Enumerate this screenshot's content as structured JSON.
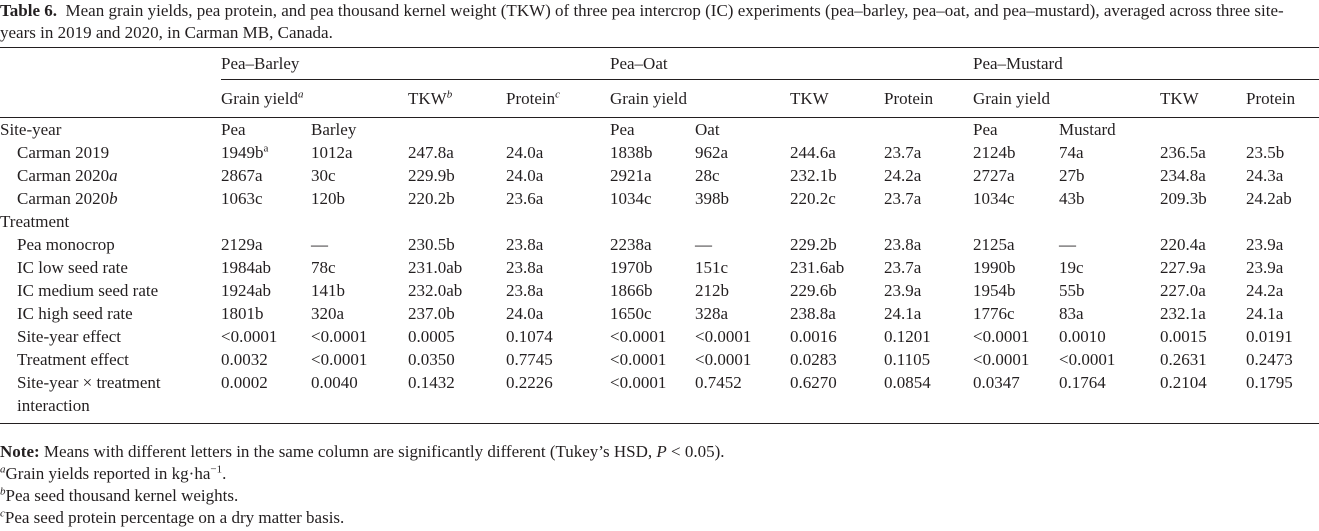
{
  "caption": {
    "label": "Table 6.",
    "text": "Mean grain yields, pea protein, and pea thousand kernel weight (TKW) of three pea intercrop (IC) experiments (pea–barley, pea–oat, and pea–mustard), averaged across three site-years in 2019 and 2020, in Carman MB, Canada."
  },
  "groups": [
    "Pea–Barley",
    "Pea–Oat",
    "Pea–Mustard"
  ],
  "subheaders": {
    "grain_yield": "Grain yield",
    "tkw": "TKW",
    "protein": "Protein",
    "sup_a": "a",
    "sup_b": "b",
    "sup_c": "c"
  },
  "sections": {
    "site_year": "Site-year",
    "treatment": "Treatment"
  },
  "crop_labels": [
    "Pea",
    "Barley",
    "Pea",
    "Oat",
    "Pea",
    "Mustard"
  ],
  "site_rows": [
    {
      "label": "Carman 2019",
      "cells": [
        "1949b",
        "1012a",
        "247.8a",
        "24.0a",
        "1838b",
        "962a",
        "244.6a",
        "23.7a",
        "2124b",
        "74a",
        "236.5a",
        "23.5b"
      ],
      "first_sup": "a"
    },
    {
      "label": "Carman 2020",
      "label_suffix": "a",
      "cells": [
        "2867a",
        "30c",
        "229.9b",
        "24.0a",
        "2921a",
        "28c",
        "232.1b",
        "24.2a",
        "2727a",
        "27b",
        "234.8a",
        "24.3a"
      ]
    },
    {
      "label": "Carman 2020",
      "label_suffix": "b",
      "cells": [
        "1063c",
        "120b",
        "220.2b",
        "23.6a",
        "1034c",
        "398b",
        "220.2c",
        "23.7a",
        "1034c",
        "43b",
        "209.3b",
        "24.2ab"
      ]
    }
  ],
  "treatment_rows": [
    {
      "label": "Pea monocrop",
      "cells": [
        "2129a",
        "—",
        "230.5b",
        "23.8a",
        "2238a",
        "—",
        "229.2b",
        "23.8a",
        "2125a",
        "—",
        "220.4a",
        "23.9a"
      ]
    },
    {
      "label": "IC low seed rate",
      "cells": [
        "1984ab",
        "78c",
        "231.0ab",
        "23.8a",
        "1970b",
        "151c",
        "231.6ab",
        "23.7a",
        "1990b",
        "19c",
        "227.9a",
        "23.9a"
      ]
    },
    {
      "label": "IC medium seed rate",
      "cells": [
        "1924ab",
        "141b",
        "232.0ab",
        "23.8a",
        "1866b",
        "212b",
        "229.6b",
        "23.9a",
        "1954b",
        "55b",
        "227.0a",
        "24.2a"
      ]
    },
    {
      "label": "IC high seed rate",
      "cells": [
        "1801b",
        "320a",
        "237.0b",
        "24.0a",
        "1650c",
        "328a",
        "238.8a",
        "24.1a",
        "1776c",
        "83a",
        "232.1a",
        "24.1a"
      ]
    },
    {
      "label": "Site-year effect",
      "cells": [
        "<0.0001",
        "<0.0001",
        "0.0005",
        "0.1074",
        "<0.0001",
        "<0.0001",
        "0.0016",
        "0.1201",
        "<0.0001",
        "0.0010",
        "0.0015",
        "0.0191"
      ]
    },
    {
      "label": "Treatment effect",
      "cells": [
        "0.0032",
        "<0.0001",
        "0.0350",
        "0.7745",
        "<0.0001",
        "<0.0001",
        "0.0283",
        "0.1105",
        "<0.0001",
        "<0.0001",
        "0.2631",
        "0.2473"
      ]
    },
    {
      "label": "Site-year × treatment",
      "label2": "interaction",
      "cells": [
        "0.0002",
        "0.0040",
        "0.1432",
        "0.2226",
        "<0.0001",
        "0.7452",
        "0.6270",
        "0.0854",
        "0.0347",
        "0.1764",
        "0.2104",
        "0.1795"
      ]
    }
  ],
  "notes": {
    "note_label": "Note:",
    "note_text": "Means with different letters in the same column are significantly different (Tukey’s HSD, ",
    "note_p": "P",
    "note_end": " < 0.05).",
    "a_sup": "a",
    "a_text": "Grain yields reported in kg·ha",
    "a_exp": "−1",
    "a_end": ".",
    "b_sup": "b",
    "b_text": "Pea seed thousand kernel weights.",
    "c_sup": "c",
    "c_text": "Pea seed protein percentage on a dry matter basis."
  }
}
